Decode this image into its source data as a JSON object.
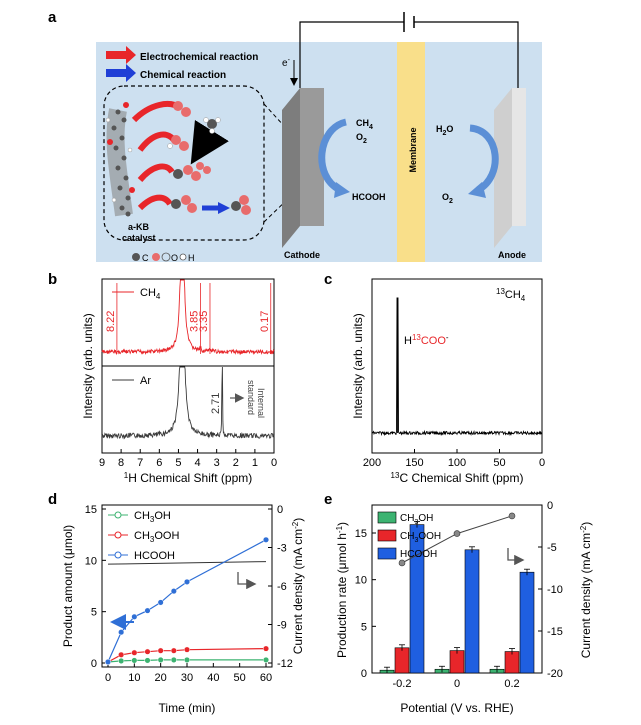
{
  "panel_labels": {
    "a": "a",
    "b": "b",
    "c": "c",
    "d": "d",
    "e": "e"
  },
  "panel_a": {
    "legend": {
      "electro": "Electrochemical reaction",
      "chem": "Chemical reaction"
    },
    "electron": "e",
    "electron_sup": "-",
    "catalyst_line1": "a-KB",
    "catalyst_line2": "catalyst",
    "atoms_legend": [
      "C",
      "O",
      "H"
    ],
    "cathode_species": [
      "CH",
      "4",
      "O",
      "2"
    ],
    "product": "HCOOH",
    "anode_in": [
      "H",
      "2",
      "O"
    ],
    "anode_out": [
      "O",
      "2"
    ],
    "membrane": "Membrane",
    "cathode": "Cathode",
    "anode": "Anode",
    "colors": {
      "bg": "#cde0f0",
      "membrane": "#f9df8a",
      "red": "#e8262a",
      "blue": "#1f3fd6"
    }
  },
  "chart_data": [
    {
      "panel": "b",
      "type": "line",
      "xlabel_sup": "1",
      "xlabel": "H Chemical Shift (ppm)",
      "ylabel": "Intensity (arb. units)",
      "xlim": [
        9,
        0
      ],
      "xticks": [
        "9",
        "8",
        "7",
        "6",
        "5",
        "4",
        "3",
        "2",
        "1",
        "0"
      ],
      "series": [
        {
          "name": "CH",
          "name_sub": "4",
          "color": "#e8262a",
          "peak_labels": [
            "8.22",
            "3.85",
            "3.35",
            "0.17"
          ]
        },
        {
          "name": "Ar",
          "color": "#444444",
          "peak_labels": [
            "2.71"
          ],
          "annotation": [
            "Internal",
            "standard"
          ]
        }
      ]
    },
    {
      "panel": "c",
      "type": "line",
      "xlabel_sup": "13",
      "xlabel": "C Chemical Shift (ppm)",
      "ylabel": "Intensity (arb. units)",
      "xlim": [
        200,
        0
      ],
      "xticks": [
        "200",
        "150",
        "100",
        "50",
        "0"
      ],
      "series_label": [
        "13",
        "CH",
        "4"
      ],
      "peak_label": [
        "H",
        "13",
        "COO",
        "-"
      ],
      "peak_x": 170
    },
    {
      "panel": "d",
      "type": "line",
      "xlabel": "Time (min)",
      "ylabel": "Product amount (μmol)",
      "ylabel2": "Current density (mA cm",
      "ylabel2_sup": "-2",
      "ylabel2_end": ")",
      "x": [
        0,
        5,
        10,
        15,
        20,
        25,
        30,
        60
      ],
      "xticks": [
        "0",
        "10",
        "20",
        "30",
        "40",
        "50",
        "60"
      ],
      "yticks": [
        "0",
        "5",
        "10",
        "15"
      ],
      "y2ticks": [
        "0",
        "-3",
        "-6",
        "-9",
        "-12"
      ],
      "ylim": [
        0,
        15
      ],
      "y2lim": [
        -12,
        0
      ],
      "series": [
        {
          "name": "CH",
          "name_sub": "3",
          "name_end": "OH",
          "color": "#3cb371",
          "values": [
            0.1,
            0.2,
            0.25,
            0.25,
            0.3,
            0.3,
            0.3,
            0.3
          ]
        },
        {
          "name": "CH",
          "name_sub": "3",
          "name_end": "OOH",
          "color": "#e8262a",
          "values": [
            0.1,
            0.8,
            1.0,
            1.1,
            1.2,
            1.2,
            1.3,
            1.4
          ]
        },
        {
          "name": "HCOOH",
          "color": "#2f6fd6",
          "values": [
            0.1,
            3.0,
            4.5,
            5.1,
            5.9,
            7.0,
            7.9,
            12.0
          ]
        }
      ],
      "current_line": {
        "x": [
          0,
          60
        ],
        "y2": [
          -4.3,
          -4.1
        ]
      }
    },
    {
      "panel": "e",
      "type": "bar",
      "xlabel": "Potential (V vs. RHE)",
      "ylabel": "Production rate (μmol h",
      "ylabel_sup": "-1",
      "ylabel_end": ")",
      "ylabel2": "Current density (mA cm",
      "ylabel2_sup": "-2",
      "ylabel2_end": ")",
      "categories": [
        "-0.2",
        "0",
        "0.2"
      ],
      "yticks": [
        "0",
        "5",
        "10",
        "15"
      ],
      "y2ticks": [
        "0",
        "-5",
        "-10",
        "-15",
        "-20"
      ],
      "ylim": [
        0,
        18
      ],
      "y2lim": [
        -20,
        0
      ],
      "series": [
        {
          "name": "CH",
          "name_sub": "3",
          "name_end": "OH",
          "color": "#3cb371",
          "values": [
            0.3,
            0.4,
            0.4
          ]
        },
        {
          "name": "CH",
          "name_sub": "3",
          "name_end": "OOH",
          "color": "#e8262a",
          "values": [
            2.7,
            2.4,
            2.3
          ]
        },
        {
          "name": "HCOOH",
          "color": "#1f5fe0",
          "values": [
            15.9,
            13.2,
            10.8
          ]
        }
      ],
      "current_density": [
        -6.9,
        -3.4,
        -1.3
      ]
    }
  ]
}
